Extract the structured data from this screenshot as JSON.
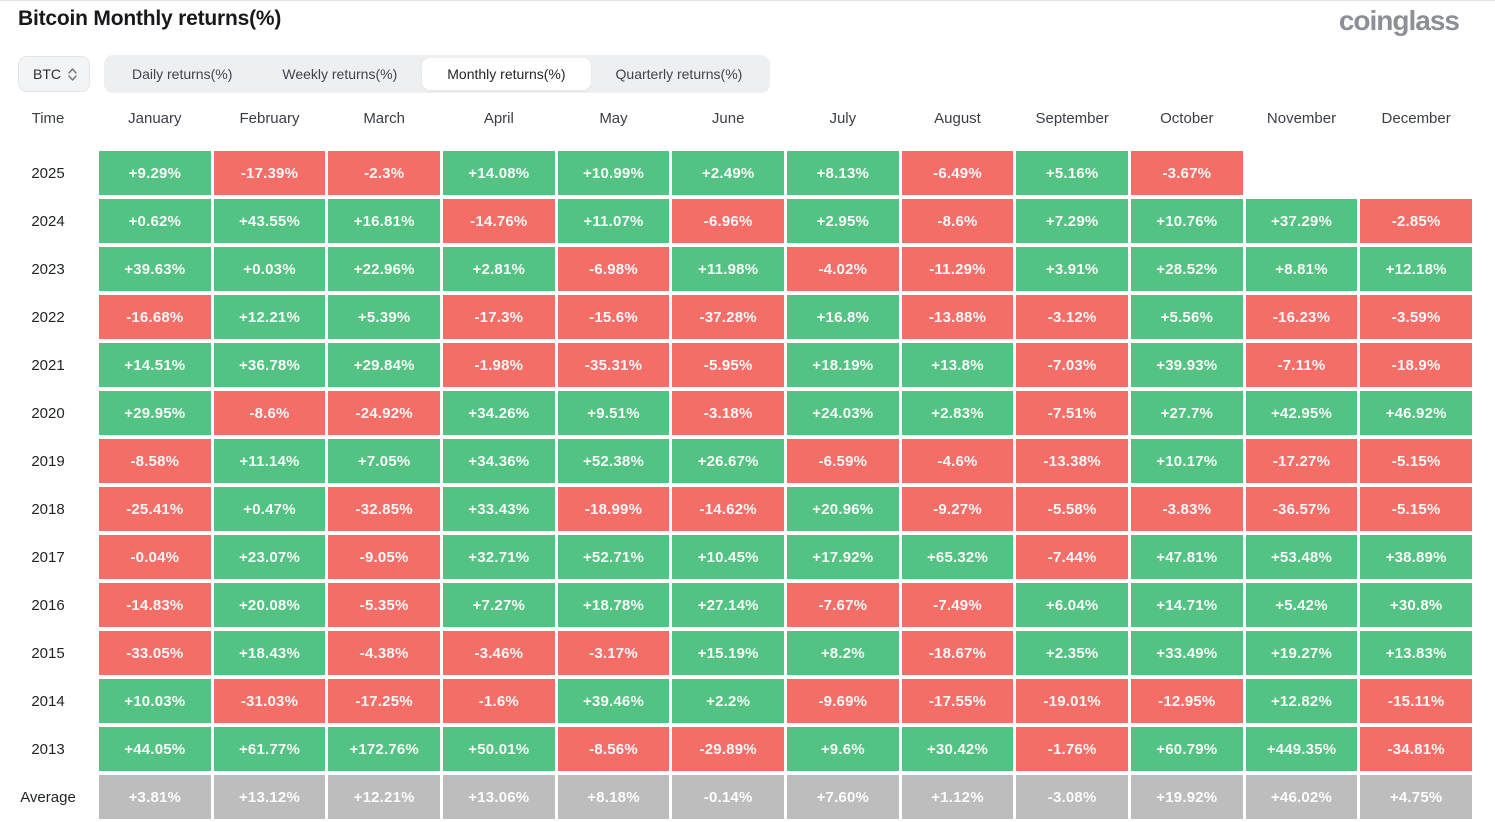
{
  "page": {
    "title": "Bitcoin Monthly returns(%)",
    "brand": "coinglass"
  },
  "controls": {
    "symbol": "BTC",
    "tabs": [
      {
        "label": "Daily returns(%)",
        "active": false
      },
      {
        "label": "Weekly returns(%)",
        "active": false
      },
      {
        "label": "Monthly returns(%)",
        "active": true
      },
      {
        "label": "Quarterly returns(%)",
        "active": false
      }
    ]
  },
  "chart_data": {
    "type": "heatmap",
    "title": "Bitcoin Monthly returns(%)",
    "unit": "%",
    "time_header": "Time",
    "columns": [
      "January",
      "February",
      "March",
      "April",
      "May",
      "June",
      "July",
      "August",
      "September",
      "October",
      "November",
      "December"
    ],
    "rows": [
      {
        "label": "2025",
        "values": [
          "+9.29%",
          "-17.39%",
          "-2.3%",
          "+14.08%",
          "+10.99%",
          "+2.49%",
          "+8.13%",
          "-6.49%",
          "+5.16%",
          "-3.67%",
          null,
          null
        ]
      },
      {
        "label": "2024",
        "values": [
          "+0.62%",
          "+43.55%",
          "+16.81%",
          "-14.76%",
          "+11.07%",
          "-6.96%",
          "+2.95%",
          "-8.6%",
          "+7.29%",
          "+10.76%",
          "+37.29%",
          "-2.85%"
        ]
      },
      {
        "label": "2023",
        "values": [
          "+39.63%",
          "+0.03%",
          "+22.96%",
          "+2.81%",
          "-6.98%",
          "+11.98%",
          "-4.02%",
          "-11.29%",
          "+3.91%",
          "+28.52%",
          "+8.81%",
          "+12.18%"
        ]
      },
      {
        "label": "2022",
        "values": [
          "-16.68%",
          "+12.21%",
          "+5.39%",
          "-17.3%",
          "-15.6%",
          "-37.28%",
          "+16.8%",
          "-13.88%",
          "-3.12%",
          "+5.56%",
          "-16.23%",
          "-3.59%"
        ]
      },
      {
        "label": "2021",
        "values": [
          "+14.51%",
          "+36.78%",
          "+29.84%",
          "-1.98%",
          "-35.31%",
          "-5.95%",
          "+18.19%",
          "+13.8%",
          "-7.03%",
          "+39.93%",
          "-7.11%",
          "-18.9%"
        ]
      },
      {
        "label": "2020",
        "values": [
          "+29.95%",
          "-8.6%",
          "-24.92%",
          "+34.26%",
          "+9.51%",
          "-3.18%",
          "+24.03%",
          "+2.83%",
          "-7.51%",
          "+27.7%",
          "+42.95%",
          "+46.92%"
        ]
      },
      {
        "label": "2019",
        "values": [
          "-8.58%",
          "+11.14%",
          "+7.05%",
          "+34.36%",
          "+52.38%",
          "+26.67%",
          "-6.59%",
          "-4.6%",
          "-13.38%",
          "+10.17%",
          "-17.27%",
          "-5.15%"
        ]
      },
      {
        "label": "2018",
        "values": [
          "-25.41%",
          "+0.47%",
          "-32.85%",
          "+33.43%",
          "-18.99%",
          "-14.62%",
          "+20.96%",
          "-9.27%",
          "-5.58%",
          "-3.83%",
          "-36.57%",
          "-5.15%"
        ]
      },
      {
        "label": "2017",
        "values": [
          "-0.04%",
          "+23.07%",
          "-9.05%",
          "+32.71%",
          "+52.71%",
          "+10.45%",
          "+17.92%",
          "+65.32%",
          "-7.44%",
          "+47.81%",
          "+53.48%",
          "+38.89%"
        ]
      },
      {
        "label": "2016",
        "values": [
          "-14.83%",
          "+20.08%",
          "-5.35%",
          "+7.27%",
          "+18.78%",
          "+27.14%",
          "-7.67%",
          "-7.49%",
          "+6.04%",
          "+14.71%",
          "+5.42%",
          "+30.8%"
        ]
      },
      {
        "label": "2015",
        "values": [
          "-33.05%",
          "+18.43%",
          "-4.38%",
          "-3.46%",
          "-3.17%",
          "+15.19%",
          "+8.2%",
          "-18.67%",
          "+2.35%",
          "+33.49%",
          "+19.27%",
          "+13.83%"
        ]
      },
      {
        "label": "2014",
        "values": [
          "+10.03%",
          "-31.03%",
          "-17.25%",
          "-1.6%",
          "+39.46%",
          "+2.2%",
          "-9.69%",
          "-17.55%",
          "-19.01%",
          "-12.95%",
          "+12.82%",
          "-15.11%"
        ]
      },
      {
        "label": "2013",
        "values": [
          "+44.05%",
          "+61.77%",
          "+172.76%",
          "+50.01%",
          "-8.56%",
          "-29.89%",
          "+9.6%",
          "+30.42%",
          "-1.76%",
          "+60.79%",
          "+449.35%",
          "-34.81%"
        ]
      },
      {
        "label": "Average",
        "is_average": true,
        "values": [
          "+3.81%",
          "+13.12%",
          "+12.21%",
          "+13.06%",
          "+8.18%",
          "-0.14%",
          "+7.60%",
          "+1.12%",
          "-3.08%",
          "+19.92%",
          "+46.02%",
          "+4.75%"
        ]
      }
    ],
    "colors": {
      "positive": "#52c382",
      "negative": "#f56d67",
      "average": "#bdbdbd"
    },
    "legend": "green = positive monthly return, red = negative monthly return, gray = column average"
  }
}
